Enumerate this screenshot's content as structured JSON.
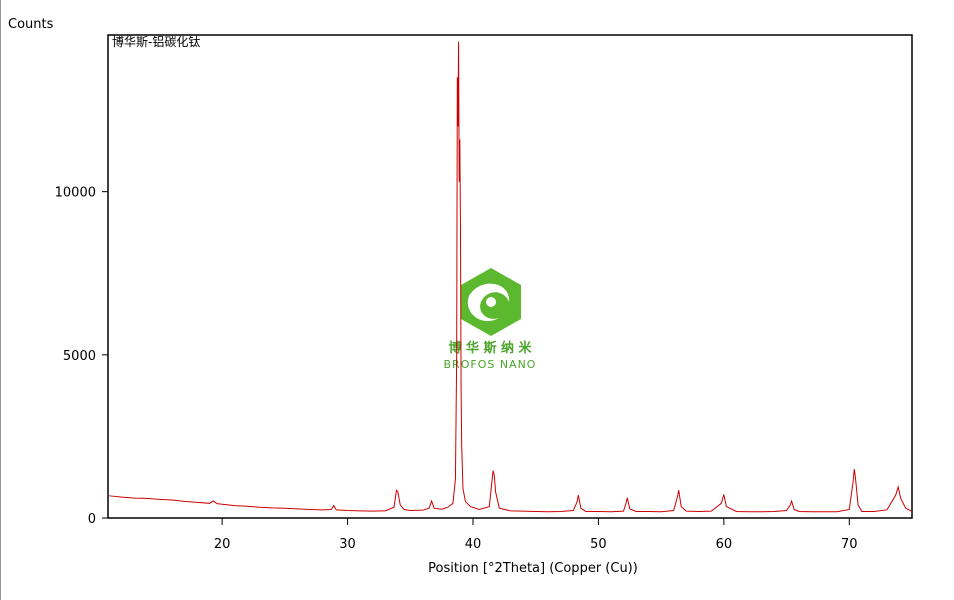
{
  "chart_data": {
    "type": "line",
    "y_axis_label": "Counts",
    "title": "博华斯-铝碳化钛",
    "x_axis_label": "Position [°2Theta] (Copper (Cu))",
    "watermark": [
      "博 华 斯 纳 米",
      "BROFOS NANO"
    ],
    "xlim": [
      10.9,
      75
    ],
    "ylim": [
      0,
      14800
    ],
    "xticks": [
      20,
      30,
      40,
      50,
      60,
      70
    ],
    "yticks": [
      0,
      5000,
      10000
    ],
    "x": [
      11,
      12,
      13,
      14,
      15,
      16,
      17,
      18,
      19,
      19.3,
      19.6,
      20,
      21,
      22,
      23,
      24,
      25,
      26,
      27,
      28,
      28.7,
      28.9,
      29.1,
      30,
      31,
      32,
      33,
      33.7,
      33.9,
      34.0,
      34.2,
      34.5,
      35,
      36,
      36.5,
      36.7,
      36.9,
      37.5,
      38,
      38.4,
      38.6,
      38.7,
      38.75,
      38.8,
      38.85,
      38.9,
      38.95,
      39.0,
      39.05,
      39.1,
      39.2,
      39.4,
      39.8,
      40.5,
      41.3,
      41.6,
      41.7,
      41.8,
      42.1,
      43,
      44,
      45,
      46,
      47,
      48,
      48.3,
      48.4,
      48.6,
      49,
      50,
      51,
      52,
      52.2,
      52.3,
      52.5,
      53,
      54,
      55,
      56,
      56.3,
      56.4,
      56.6,
      57,
      58,
      59,
      59.8,
      60.0,
      60.2,
      61,
      62,
      63,
      64,
      65,
      65.3,
      65.4,
      65.6,
      66,
      67,
      68,
      69,
      70,
      70.3,
      70.4,
      70.5,
      70.7,
      71,
      72,
      73,
      73.7,
      73.9,
      74.1,
      74.5,
      75
    ],
    "series": [
      {
        "color": "#cc0000",
        "values": [
          680,
          640,
          610,
          600,
          570,
          550,
          510,
          480,
          450,
          520,
          440,
          420,
          380,
          360,
          330,
          310,
          300,
          280,
          260,
          250,
          260,
          380,
          250,
          230,
          220,
          210,
          220,
          330,
          850,
          820,
          400,
          260,
          230,
          240,
          300,
          520,
          300,
          270,
          330,
          450,
          1200,
          5000,
          13500,
          12000,
          14600,
          10300,
          11600,
          9000,
          4000,
          2200,
          900,
          500,
          350,
          260,
          350,
          1450,
          1300,
          800,
          300,
          220,
          210,
          200,
          190,
          200,
          230,
          500,
          700,
          300,
          200,
          200,
          190,
          210,
          450,
          620,
          280,
          200,
          200,
          190,
          230,
          650,
          850,
          350,
          210,
          200,
          210,
          450,
          720,
          350,
          200,
          190,
          190,
          200,
          230,
          400,
          520,
          260,
          200,
          190,
          190,
          190,
          260,
          1100,
          1500,
          1200,
          400,
          200,
          200,
          250,
          700,
          950,
          600,
          300,
          200
        ]
      }
    ]
  }
}
